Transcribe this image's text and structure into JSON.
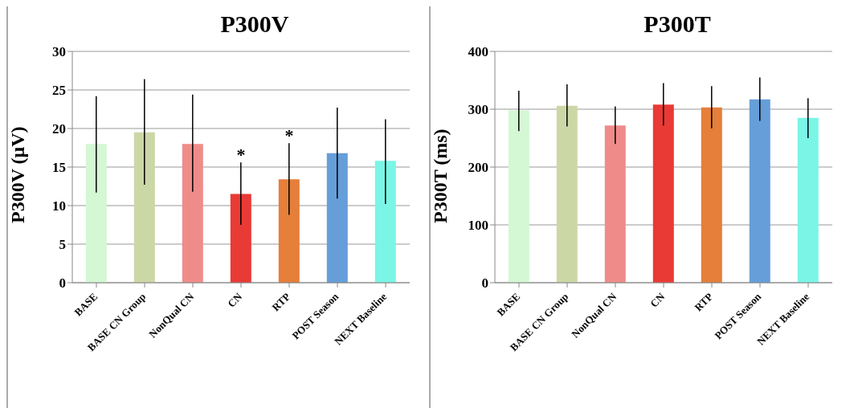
{
  "chart_data": [
    {
      "type": "bar",
      "title": "P300V",
      "ylabel": "P300V (μV)",
      "categories": [
        "BASE",
        "BASE CN Group",
        "NonQual CN",
        "CN",
        "RTP",
        "POST Season",
        "NEXT Baseline"
      ],
      "values": [
        18.0,
        19.5,
        18.0,
        11.5,
        13.4,
        16.8,
        15.8
      ],
      "colors": [
        "#d4f7d4",
        "#ccd7a6",
        "#ef8c8a",
        "#e93a35",
        "#e57f3a",
        "#659ed9",
        "#7af5e6"
      ],
      "errors": [
        [
          11.7,
          24.2
        ],
        [
          12.7,
          26.4
        ],
        [
          11.8,
          24.4
        ],
        [
          7.5,
          15.6
        ],
        [
          8.8,
          18.1
        ],
        [
          10.9,
          22.7
        ],
        [
          10.2,
          21.2
        ]
      ],
      "ylim": [
        0,
        30
      ],
      "yticks": [
        0,
        5,
        10,
        15,
        20,
        25,
        30
      ],
      "grid": "y",
      "legend": false,
      "annotations": [
        {
          "text": "*",
          "x": "CN",
          "y": 15.6
        },
        {
          "text": "*",
          "x": "RTP",
          "y": 18.1
        }
      ]
    },
    {
      "type": "bar",
      "title": "P300T",
      "ylabel": "P300T (ms)",
      "categories": [
        "BASE",
        "BASE CN Group",
        "NonQual CN",
        "CN",
        "RTP",
        "POST Season",
        "NEXT Baseline"
      ],
      "values": [
        298,
        306,
        272,
        308,
        303,
        317,
        285
      ],
      "colors": [
        "#d4f7d4",
        "#ccd7a6",
        "#ef8c8a",
        "#e93a35",
        "#e57f3a",
        "#659ed9",
        "#7af5e6"
      ],
      "errors": [
        [
          262,
          332
        ],
        [
          270,
          343
        ],
        [
          240,
          305
        ],
        [
          272,
          345
        ],
        [
          267,
          340
        ],
        [
          280,
          355
        ],
        [
          250,
          319
        ]
      ],
      "ylim": [
        0,
        400
      ],
      "yticks": [
        0,
        100,
        200,
        300,
        400
      ],
      "grid": "y",
      "legend": false
    }
  ]
}
